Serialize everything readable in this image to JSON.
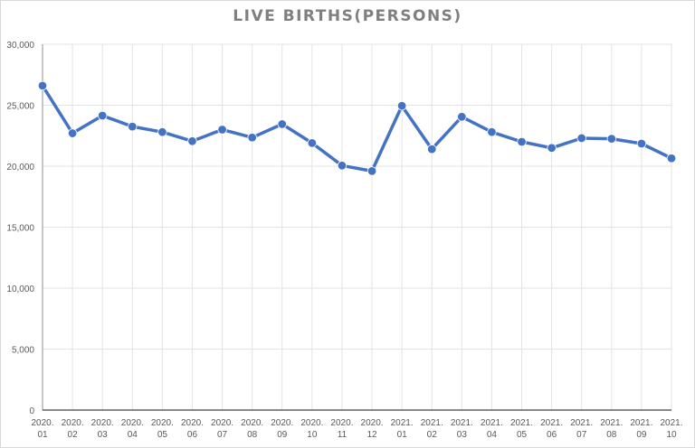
{
  "chart_data": {
    "type": "line",
    "title": "LIVE BIRTHS(PERSONS)",
    "xlabel": "",
    "ylabel": "",
    "ylim": [
      0,
      30000
    ],
    "yticks": [
      0,
      5000,
      10000,
      15000,
      20000,
      25000,
      30000
    ],
    "ytick_labels": [
      "0",
      "5,000",
      "10,000",
      "15,000",
      "20,000",
      "25,000",
      "30,000"
    ],
    "grid": true,
    "legend": null,
    "categories": [
      "2020. 01",
      "2020. 02",
      "2020. 03",
      "2020. 04",
      "2020. 05",
      "2020. 06",
      "2020. 07",
      "2020. 08",
      "2020. 09",
      "2020. 10",
      "2020. 11",
      "2020. 12",
      "2021. 01",
      "2021. 02",
      "2021. 03",
      "2021. 04",
      "2021. 05",
      "2021. 06",
      "2021. 07",
      "2021. 08",
      "2021. 09",
      "2021. 10"
    ],
    "category_lines": [
      [
        "2020.",
        "01"
      ],
      [
        "2020.",
        "02"
      ],
      [
        "2020.",
        "03"
      ],
      [
        "2020.",
        "04"
      ],
      [
        "2020.",
        "05"
      ],
      [
        "2020.",
        "06"
      ],
      [
        "2020.",
        "07"
      ],
      [
        "2020.",
        "08"
      ],
      [
        "2020.",
        "09"
      ],
      [
        "2020.",
        "10"
      ],
      [
        "2020.",
        "11"
      ],
      [
        "2020.",
        "12"
      ],
      [
        "2021.",
        "01"
      ],
      [
        "2021.",
        "02"
      ],
      [
        "2021.",
        "03"
      ],
      [
        "2021.",
        "04"
      ],
      [
        "2021.",
        "05"
      ],
      [
        "2021.",
        "06"
      ],
      [
        "2021.",
        "07"
      ],
      [
        "2021.",
        "08"
      ],
      [
        "2021.",
        "09"
      ],
      [
        "2021.",
        "10"
      ]
    ],
    "series": [
      {
        "name": "Live births",
        "color": "#4472c4",
        "values": [
          26600,
          22700,
          24150,
          23250,
          22800,
          22050,
          23000,
          22350,
          23450,
          21900,
          20050,
          19600,
          24950,
          21400,
          24050,
          22800,
          22000,
          21500,
          22300,
          22250,
          21850,
          20650
        ]
      }
    ]
  }
}
